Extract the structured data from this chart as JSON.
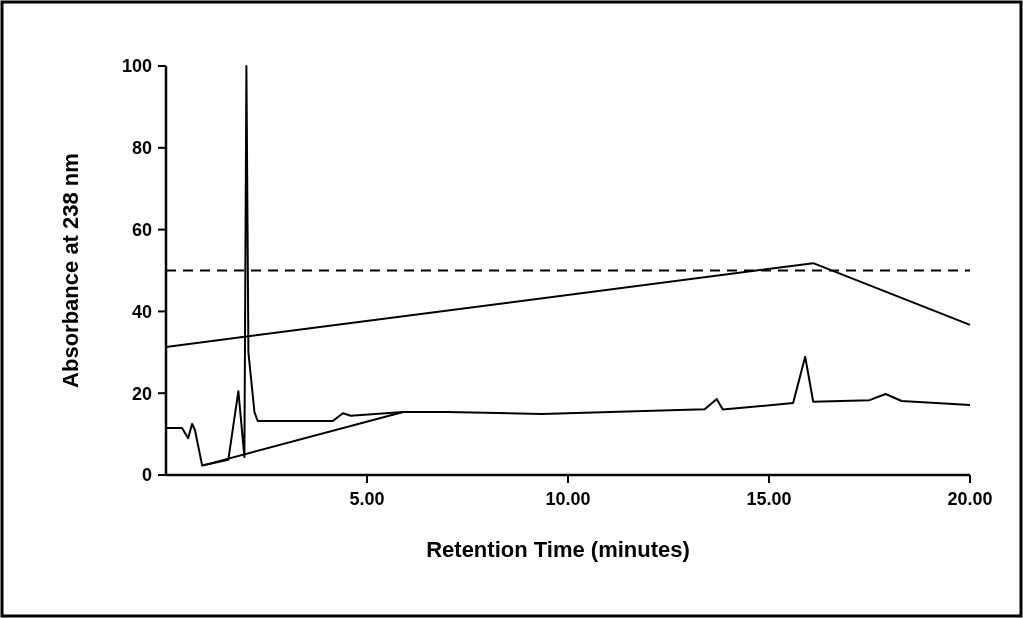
{
  "chart_data": {
    "type": "line",
    "xlabel": "Retention Time (minutes)",
    "ylabel": "Absorbance at 238 nm",
    "xlim": [
      0,
      20
    ],
    "ylim": [
      0,
      100
    ],
    "xticks": [
      {
        "value": 5,
        "label": "5.00"
      },
      {
        "value": 10,
        "label": "10.00"
      },
      {
        "value": 15,
        "label": "15.00"
      },
      {
        "value": 20,
        "label": "20.00"
      }
    ],
    "yticks": [
      0,
      20,
      40,
      60,
      80,
      100
    ],
    "grid": false,
    "marker": "none",
    "ref_lines": [
      {
        "axis": "y",
        "value": 50,
        "line_style": "dashed",
        "color": "#000000"
      }
    ],
    "series": [
      {
        "color": "#000000",
        "x": [
          0,
          16.1,
          20
        ],
        "values": [
          31.3,
          51.8,
          36.7
        ]
      },
      {
        "color": "#000000",
        "x": [
          0,
          0.4,
          0.55,
          0.65,
          0.72,
          0.9,
          1.55,
          1.8,
          1.95,
          2.0,
          2.05,
          2.2,
          2.28,
          4.15,
          4.4,
          4.6,
          5.9,
          7,
          9.35,
          13.4,
          13.7,
          13.85,
          15.6,
          15.9,
          16.1,
          17.5,
          17.9,
          18.3,
          20
        ],
        "values": [
          11.5,
          11.5,
          9,
          12.5,
          11,
          2.3,
          3.7,
          20.5,
          4.4,
          100,
          30,
          15.4,
          13.2,
          13.2,
          15.1,
          14.5,
          15.4,
          15.4,
          14.9,
          16.1,
          18.6,
          16,
          17.6,
          28.9,
          17.9,
          18.3,
          19.8,
          18.1,
          17.1
        ]
      },
      {
        "color": "#000000",
        "x": [
          0.9,
          5.9
        ],
        "values": [
          2.3,
          15.4
        ]
      }
    ]
  }
}
